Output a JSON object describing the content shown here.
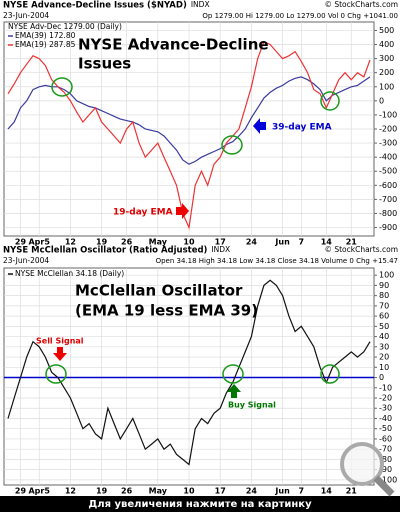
{
  "chart_data": [
    {
      "type": "line",
      "title": "NYSE Advance-Decline Issues ($NYAD)",
      "exchange": "INDX",
      "date": "23-Jun-2004",
      "quote": "Op 1279.00 Hi 1279.00 Lo 1279.00 Vol 0 Chg +1041.00",
      "watermark": "© StockCharts.com",
      "legend_title": "NYSE Adv-Dec 1279.00 (Daily)",
      "categories": [
        null,
        null,
        "29",
        null,
        null,
        "Apr5",
        null,
        null,
        null,
        null,
        "12",
        null,
        null,
        null,
        null,
        "19",
        null,
        null,
        null,
        "26",
        null,
        null,
        null,
        null,
        "May",
        null,
        null,
        null,
        null,
        "10",
        null,
        null,
        null,
        null,
        "17",
        null,
        null,
        null,
        null,
        "24",
        null,
        null,
        null,
        null,
        "Jun",
        null,
        null,
        "7",
        null,
        null,
        null,
        "14",
        null,
        null,
        null,
        "21",
        null,
        null,
        null
      ],
      "series": [
        {
          "name": "EMA(39) 172.80",
          "color": "#3a3aa0",
          "values": [
            -200,
            -150,
            -50,
            0,
            80,
            100,
            110,
            100,
            100,
            80,
            50,
            0,
            -20,
            -40,
            -50,
            -70,
            -90,
            -110,
            -130,
            -140,
            -150,
            -170,
            -200,
            -210,
            -220,
            -250,
            -300,
            -350,
            -420,
            -450,
            -430,
            -400,
            -380,
            -360,
            -340,
            -310,
            -290,
            -250,
            -200,
            -120,
            -50,
            20,
            60,
            90,
            110,
            140,
            160,
            170,
            150,
            120,
            80,
            0,
            40,
            60,
            80,
            100,
            110,
            140,
            170
          ]
        },
        {
          "name": "EMA(19) 287.85",
          "color": "#ee3333",
          "values": [
            50,
            120,
            200,
            260,
            320,
            300,
            250,
            150,
            100,
            60,
            0,
            -80,
            -150,
            -100,
            -50,
            -150,
            -200,
            -250,
            -300,
            -200,
            -150,
            -300,
            -400,
            -350,
            -300,
            -400,
            -500,
            -600,
            -800,
            -900,
            -600,
            -500,
            -600,
            -450,
            -400,
            -300,
            -250,
            -200,
            -50,
            100,
            300,
            420,
            400,
            350,
            300,
            320,
            350,
            280,
            200,
            80,
            50,
            -50,
            50,
            150,
            200,
            150,
            200,
            170,
            290
          ]
        }
      ],
      "ylim": [
        -960,
        560
      ],
      "yticks": [
        -900,
        -800,
        -700,
        -600,
        -500,
        -400,
        -300,
        -200,
        -100,
        0,
        100,
        200,
        300,
        400,
        500
      ],
      "grid": true,
      "annotations": [
        {
          "text": "NYSE Advance-Decline",
          "color": "#000000"
        },
        {
          "text": "Issues",
          "color": "#000000"
        },
        {
          "text": "19-day EMA",
          "color": "#dd0000"
        },
        {
          "text": "39-day EMA",
          "color": "#0000cc"
        }
      ]
    },
    {
      "type": "line",
      "title": "NYSE McClellan Oscillator (Ratio Adjusted)",
      "exchange": "INDX",
      "date": "23-Jun-2004",
      "quote": "Open 34.18 High 34.18 Low 34.18 Close 34.18 Volume 0 Chg +15.47",
      "watermark": "© StockCharts.com",
      "categories": [
        null,
        null,
        "29",
        null,
        null,
        "Apr5",
        null,
        null,
        null,
        null,
        "12",
        null,
        null,
        null,
        null,
        "19",
        null,
        null,
        null,
        "26",
        null,
        null,
        null,
        null,
        "May",
        null,
        null,
        null,
        null,
        "10",
        null,
        null,
        null,
        null,
        "17",
        null,
        null,
        null,
        null,
        "24",
        null,
        null,
        null,
        null,
        "Jun",
        null,
        null,
        "7",
        null,
        null,
        null,
        "14",
        null,
        null,
        null,
        "21",
        null,
        null,
        null
      ],
      "series": [
        {
          "name": "NYSE McClellan 34.18 (Daily)",
          "color": "#111111",
          "values": [
            -40,
            -20,
            0,
            20,
            35,
            30,
            20,
            5,
            0,
            -10,
            -20,
            -35,
            -50,
            -45,
            -55,
            -60,
            -30,
            -45,
            -60,
            -50,
            -40,
            -55,
            -70,
            -65,
            -60,
            -70,
            -65,
            -75,
            -80,
            -85,
            -50,
            -40,
            -45,
            -35,
            -30,
            -15,
            -5,
            10,
            25,
            40,
            70,
            90,
            95,
            90,
            80,
            60,
            45,
            50,
            40,
            30,
            10,
            -5,
            10,
            15,
            20,
            25,
            20,
            25,
            35
          ]
        }
      ],
      "ylim": [
        -105,
        107
      ],
      "yticks": [
        -100,
        -90,
        -80,
        -70,
        -60,
        -50,
        -40,
        -30,
        -20,
        -10,
        0,
        10,
        20,
        30,
        40,
        50,
        60,
        70,
        80,
        90,
        100
      ],
      "grid": true,
      "zero_line_color": "#0000cc",
      "annotations": [
        {
          "text": "McClellan Oscillator",
          "color": "#000000"
        },
        {
          "text": "(EMA 19 less EMA 39)",
          "color": "#000000"
        },
        {
          "text": "Sell Signal",
          "color": "#dd0000"
        },
        {
          "text": "Buy Signal",
          "color": "#007700"
        }
      ]
    }
  ],
  "footer": "Для увеличения нажмите на картинку"
}
